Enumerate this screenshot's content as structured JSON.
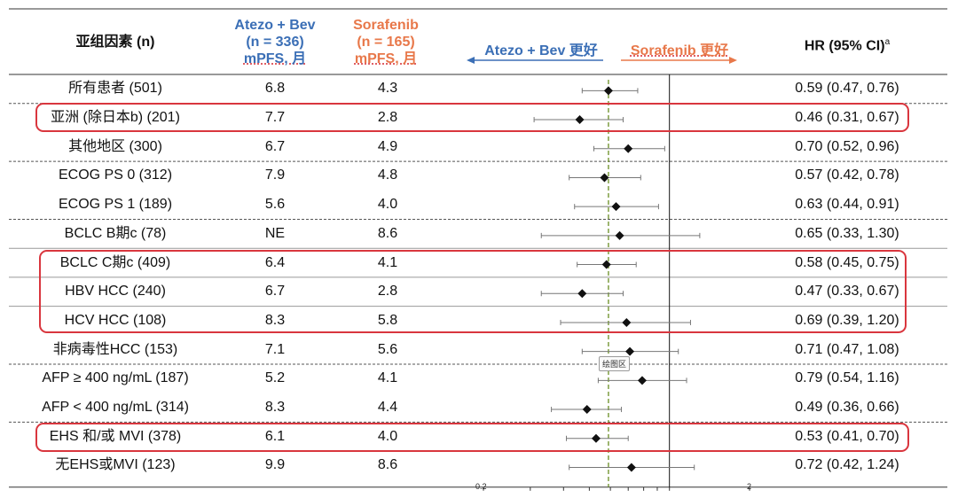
{
  "headers": {
    "subgroup": "亚组因素 (n)",
    "atezo": [
      "Atezo + Bev",
      "(n = 336)",
      "mPFS, 月"
    ],
    "sorafenib": [
      "Sorafenib",
      "(n = 165)",
      "mPFS,  月"
    ],
    "favors_left": "Atezo + Bev 更好",
    "favors_right": "Sorafenib 更好",
    "hr": "HR (95% CI)",
    "hr_sup": "a"
  },
  "colors": {
    "atezo_blue": "#3b6fb6",
    "sorafenib_orange": "#e8784a",
    "highlight_red": "#d9363e",
    "ref_line_green": "#6a8e23"
  },
  "tooltip": "绘图区",
  "rows": [
    {
      "subgroup": "所有患者 (501)",
      "atezo": "6.8",
      "sorafenib": "4.3",
      "hr_text": "0.59 (0.47, 0.76)"
    },
    {
      "subgroup": "亚洲 (除日本b) (201)",
      "atezo": "7.7",
      "sorafenib": "2.8",
      "hr_text": "0.46 (0.31, 0.67)"
    },
    {
      "subgroup": "其他地区 (300)",
      "atezo": "6.7",
      "sorafenib": "4.9",
      "hr_text": "0.70 (0.52, 0.96)"
    },
    {
      "subgroup": "ECOG PS 0 (312)",
      "atezo": "7.9",
      "sorafenib": "4.8",
      "hr_text": "0.57 (0.42, 0.78)"
    },
    {
      "subgroup": "ECOG PS 1 (189)",
      "atezo": "5.6",
      "sorafenib": "4.0",
      "hr_text": "0.63 (0.44, 0.91)"
    },
    {
      "subgroup": "BCLC B期c (78)",
      "atezo": "NE",
      "sorafenib": "8.6",
      "hr_text": "0.65 (0.33, 1.30)"
    },
    {
      "subgroup": "BCLC C期c (409)",
      "atezo": "6.4",
      "sorafenib": "4.1",
      "hr_text": "0.58 (0.45, 0.75)"
    },
    {
      "subgroup": "HBV HCC (240)",
      "atezo": "6.7",
      "sorafenib": "2.8",
      "hr_text": "0.47 (0.33, 0.67)"
    },
    {
      "subgroup": "HCV HCC (108)",
      "atezo": "8.3",
      "sorafenib": "5.8",
      "hr_text": "0.69 (0.39, 1.20)"
    },
    {
      "subgroup": "非病毒性HCC (153)",
      "atezo": "7.1",
      "sorafenib": "5.6",
      "hr_text": "0.71 (0.47, 1.08)"
    },
    {
      "subgroup": "AFP ≥ 400 ng/mL (187)",
      "atezo": "5.2",
      "sorafenib": "4.1",
      "hr_text": "0.79 (0.54, 1.16)"
    },
    {
      "subgroup": "AFP < 400 ng/mL (314)",
      "atezo": "8.3",
      "sorafenib": "4.4",
      "hr_text": "0.49 (0.36, 0.66)"
    },
    {
      "subgroup": "EHS 和/或 MVI (378)",
      "atezo": "6.1",
      "sorafenib": "4.0",
      "hr_text": "0.53 (0.41, 0.70)"
    },
    {
      "subgroup": "无EHS或MVI (123)",
      "atezo": "9.9",
      "sorafenib": "8.6",
      "hr_text": "0.72 (0.42, 1.24)"
    }
  ],
  "chart_data": {
    "type": "forest",
    "x_scale": "log",
    "xlim": [
      0.2,
      2
    ],
    "x_tick_labels": [
      "0.2",
      "2"
    ],
    "reference_line": 1,
    "overall_hr_line": 0.59,
    "legend": [
      "Atezo + Bev 更好",
      "Sorafenib 更好"
    ],
    "highlighted_groups": [
      [
        "亚洲 (除日本b) (201)"
      ],
      [
        "BCLC C期c (409)",
        "HBV HCC (240)",
        "HCV HCC (108)"
      ],
      [
        "EHS 和/或 MVI (378)"
      ]
    ],
    "categories": [
      "所有患者 (501)",
      "亚洲 (除日本b) (201)",
      "其他地区 (300)",
      "ECOG PS 0 (312)",
      "ECOG PS 1 (189)",
      "BCLC B期c (78)",
      "BCLC C期c (409)",
      "HBV HCC (240)",
      "HCV HCC (108)",
      "非病毒性HCC (153)",
      "AFP ≥ 400 ng/mL (187)",
      "AFP < 400 ng/mL (314)",
      "EHS 和/或 MVI (378)",
      "无EHS或MVI (123)"
    ],
    "hr": [
      0.59,
      0.46,
      0.7,
      0.57,
      0.63,
      0.65,
      0.58,
      0.47,
      0.69,
      0.71,
      0.79,
      0.49,
      0.53,
      0.72
    ],
    "lower": [
      0.47,
      0.31,
      0.52,
      0.42,
      0.44,
      0.33,
      0.45,
      0.33,
      0.39,
      0.47,
      0.54,
      0.36,
      0.41,
      0.42
    ],
    "upper": [
      0.76,
      0.67,
      0.96,
      0.78,
      0.91,
      1.3,
      0.75,
      0.67,
      1.2,
      1.08,
      1.16,
      0.66,
      0.7,
      1.24
    ]
  }
}
